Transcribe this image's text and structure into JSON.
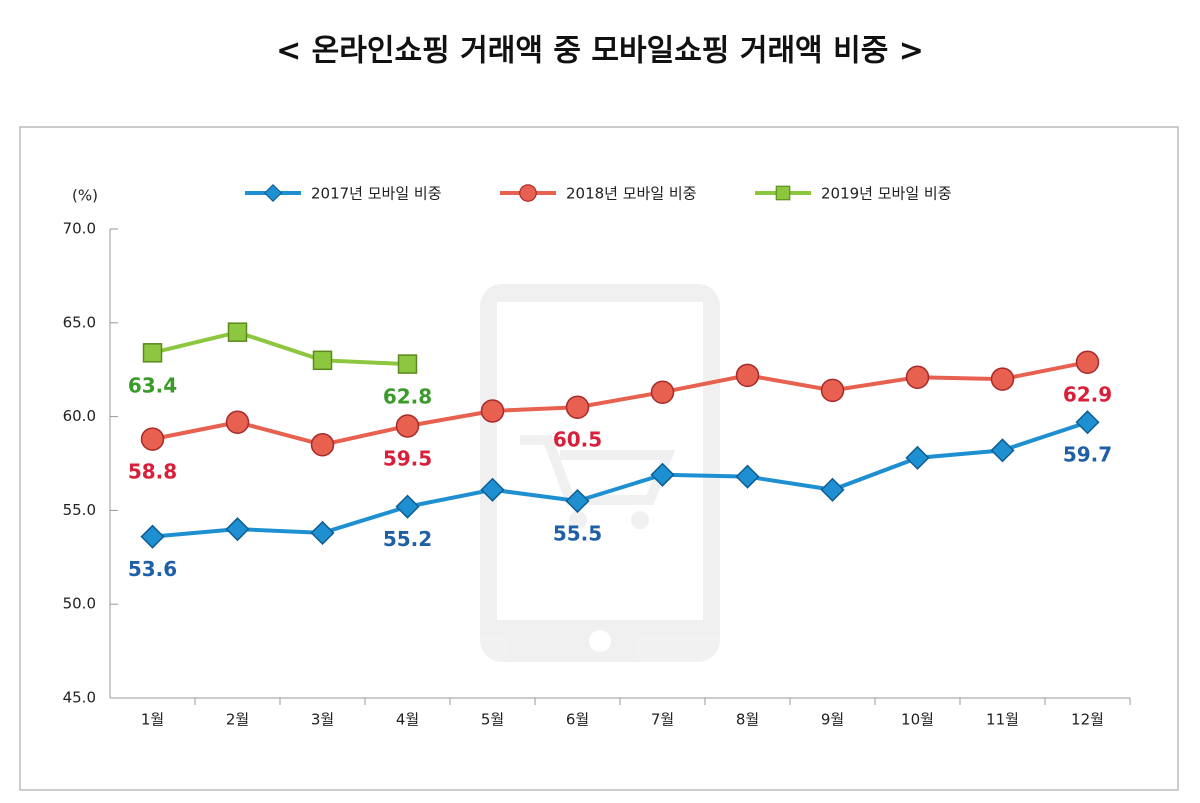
{
  "chart_data": {
    "type": "line",
    "title": "< 온라인쇼핑 거래액 중 모바일쇼핑 거래액 비중 >",
    "y_label": "(%)",
    "categories": [
      "1월",
      "2월",
      "3월",
      "4월",
      "5월",
      "6월",
      "7월",
      "8월",
      "9월",
      "10월",
      "11월",
      "12월"
    ],
    "series": [
      {
        "name": "2017년 모바일 비중",
        "color": "#1e90d2",
        "label_color": "#1f5fa8",
        "marker": "diamond",
        "values": [
          53.6,
          54.0,
          53.8,
          55.2,
          56.1,
          55.5,
          56.9,
          56.8,
          56.1,
          57.8,
          58.2,
          59.7
        ],
        "labels_at": [
          0,
          3,
          5,
          11
        ]
      },
      {
        "name": "2018년 모바일 비중",
        "color": "#e8604f",
        "label_color": "#d8203a",
        "marker": "circle",
        "values": [
          58.8,
          59.7,
          58.5,
          59.5,
          60.3,
          60.5,
          61.3,
          62.2,
          61.4,
          62.1,
          62.0,
          62.9
        ],
        "labels_at": [
          0,
          3,
          5,
          11
        ]
      },
      {
        "name": "2019년 모바일 비중",
        "color": "#8dc63f",
        "label_color": "#3a9a2a",
        "marker": "square",
        "values": [
          63.4,
          64.5,
          63.0,
          62.8,
          null,
          null,
          null,
          null,
          null,
          null,
          null,
          null
        ],
        "labels_at": [
          0,
          3
        ]
      }
    ],
    "ylim": [
      45,
      70
    ],
    "yticks": [
      {
        "value": 45,
        "label": "45.0"
      },
      {
        "value": 50,
        "label": "50.0"
      },
      {
        "value": 55,
        "label": "55.0"
      },
      {
        "value": 60,
        "label": "60.0"
      },
      {
        "value": 65,
        "label": "65.0"
      },
      {
        "value": 70,
        "label": "70.0"
      }
    ],
    "grid": false,
    "legend": "top"
  }
}
